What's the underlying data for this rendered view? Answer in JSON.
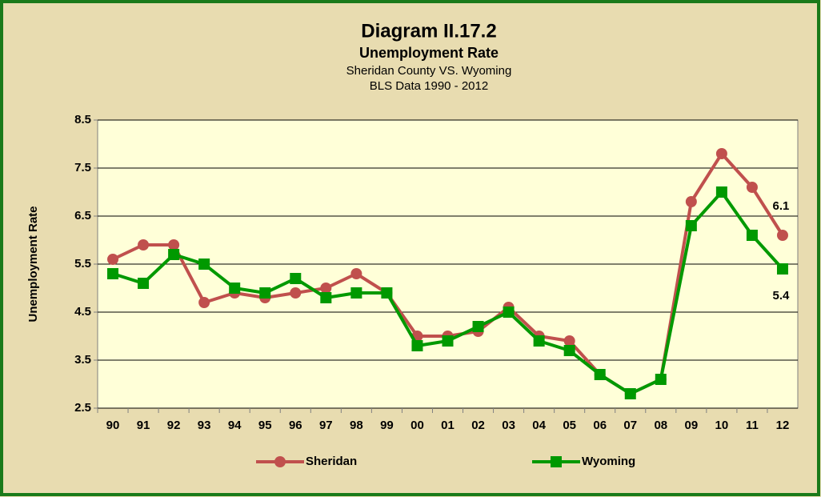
{
  "chart_data": {
    "type": "line",
    "title": "Diagram II.17.2",
    "subtitle": "Unemployment Rate",
    "subtitles": [
      "Sheridan County VS. Wyoming",
      "BLS Data 1990 - 2012"
    ],
    "ylabel": "Unemployment Rate",
    "categories": [
      "90",
      "91",
      "92",
      "93",
      "94",
      "95",
      "96",
      "97",
      "98",
      "99",
      "00",
      "01",
      "02",
      "03",
      "04",
      "05",
      "06",
      "07",
      "08",
      "09",
      "10",
      "11",
      "12"
    ],
    "series": [
      {
        "name": "Sheridan",
        "color": "#c0504d",
        "marker": "circle",
        "values": [
          5.6,
          5.9,
          5.9,
          4.7,
          4.9,
          4.8,
          4.9,
          5.0,
          5.3,
          4.9,
          4.0,
          4.0,
          4.1,
          4.6,
          4.0,
          3.9,
          3.2,
          2.8,
          3.1,
          6.8,
          7.8,
          7.1,
          6.1
        ]
      },
      {
        "name": "Wyoming",
        "color": "#009900",
        "marker": "square",
        "values": [
          5.3,
          5.1,
          5.7,
          5.5,
          5.0,
          4.9,
          5.2,
          4.8,
          4.9,
          4.9,
          3.8,
          3.9,
          4.2,
          4.5,
          3.9,
          3.7,
          3.2,
          2.8,
          3.1,
          6.3,
          7.0,
          6.1,
          5.4
        ]
      }
    ],
    "ylim": [
      2.5,
      8.5
    ],
    "yticks": [
      2.5,
      3.5,
      4.5,
      5.5,
      6.5,
      7.5,
      8.5
    ],
    "grid": true,
    "legend": "bottom"
  }
}
